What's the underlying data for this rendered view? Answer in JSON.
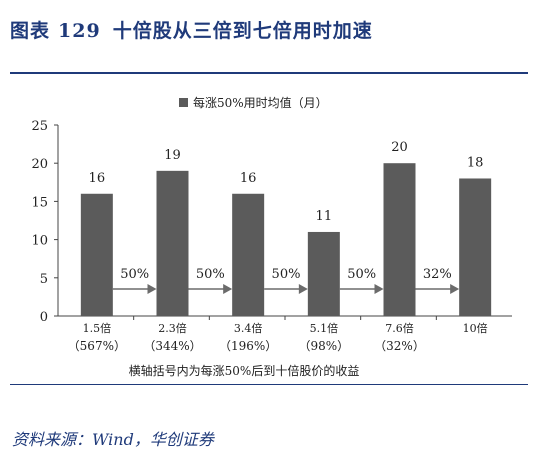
{
  "header": {
    "label": "图表",
    "number": "129",
    "text": "十倍股从三倍到七倍用时加速"
  },
  "source": "资料来源：Wind，华创证券",
  "colors": {
    "accent": "#1f3a7a",
    "bar": "#5b5b5b",
    "arrow": "#6b6b6b"
  },
  "chart_data": {
    "type": "bar",
    "categories": [
      "1.5倍",
      "2.3倍",
      "3.4倍",
      "5.1倍",
      "7.6倍",
      "10倍"
    ],
    "sublabels": [
      "（567%）",
      "（344%）",
      "（196%）",
      "（98%）",
      "（32%）",
      ""
    ],
    "series": [
      {
        "name": "每涨50%用时均值（月）",
        "values": [
          16,
          19,
          16,
          11,
          20,
          18
        ]
      }
    ],
    "data_labels": [
      "16",
      "19",
      "16",
      "11",
      "20",
      "18"
    ],
    "arrows": [
      "50%",
      "50%",
      "50%",
      "50%",
      "32%"
    ],
    "ylim": [
      0,
      25
    ],
    "yticks": [
      "0",
      "5",
      "10",
      "15",
      "20",
      "25"
    ],
    "xlabel": "横轴括号内为每涨50%后到十倍股价的收益",
    "legend_position": "top-center",
    "grid": false
  }
}
